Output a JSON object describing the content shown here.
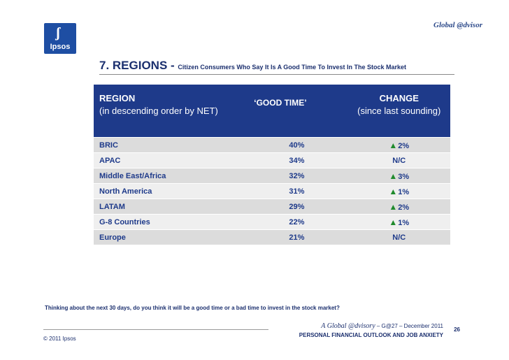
{
  "header": {
    "brand": "Global @dvisor",
    "logo_text": "Ipsos"
  },
  "title": {
    "main": "7. REGIONS - ",
    "subtitle": "Citizen Consumers Who Say It Is A Good Time To Invest In The Stock Market"
  },
  "table": {
    "headers": {
      "region_line1": "REGION",
      "region_line2": "(in descending order by NET)",
      "good_time": "‘GOOD TIME’",
      "change_line1": "CHANGE",
      "change_line2": "(since last sounding)"
    },
    "rows": [
      {
        "region": "BRIC",
        "good_time": "40%",
        "change": "2%",
        "up": true
      },
      {
        "region": "APAC",
        "good_time": "34%",
        "change": "N/C",
        "up": false
      },
      {
        "region": "Middle East/Africa",
        "good_time": "32%",
        "change": "3%",
        "up": true
      },
      {
        "region": "North America",
        "good_time": "31%",
        "change": "1%",
        "up": true
      },
      {
        "region": "LATAM",
        "good_time": "29%",
        "change": "2%",
        "up": true
      },
      {
        "region": "G-8 Countries",
        "good_time": "22%",
        "change": "1%",
        "up": true
      },
      {
        "region": "Europe",
        "good_time": "21%",
        "change": "N/C",
        "up": false
      }
    ]
  },
  "question": "Thinking about the next 30 days, do you think it will be a good time or a bad time to invest in the stock market?",
  "footer": {
    "series": "A Global @dvisory",
    "issue": " – G@27 – December 2011",
    "topic": "PERSONAL FINANCIAL OUTLOOK AND JOB ANXIETY",
    "page": "26",
    "copyright": "© 2011 Ipsos"
  },
  "colors": {
    "header_bg": "#1e3a8a",
    "text": "#1b2f6e",
    "up_arrow": "#1f8a2c",
    "row_dark": "#dcdcdc",
    "row_light": "#efefef"
  },
  "icons": {
    "increase": "up-triangle-icon"
  }
}
